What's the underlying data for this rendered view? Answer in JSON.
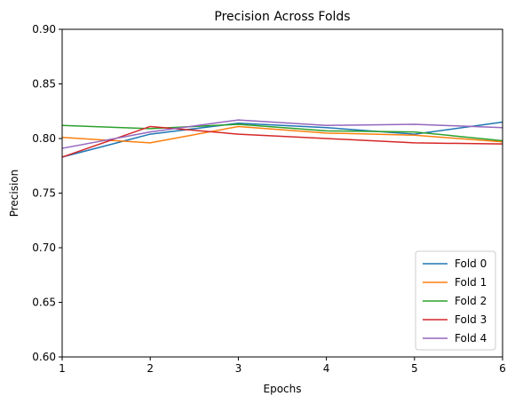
{
  "chart_data": {
    "type": "line",
    "title": "Precision Across Folds",
    "xlabel": "Epochs",
    "ylabel": "Precision",
    "xlim": [
      1,
      6
    ],
    "ylim": [
      0.6,
      0.9
    ],
    "x": [
      1,
      2,
      3,
      4,
      5,
      6
    ],
    "x_ticks": [
      "1",
      "2",
      "3",
      "4",
      "5",
      "6"
    ],
    "y_ticks": [
      "0.60",
      "0.65",
      "0.70",
      "0.75",
      "0.80",
      "0.85",
      "0.90"
    ],
    "grid": false,
    "legend_position": "bottom-right",
    "series": [
      {
        "name": "Fold 0",
        "color": "#1f77b4",
        "values": [
          0.783,
          0.804,
          0.814,
          0.81,
          0.804,
          0.815
        ]
      },
      {
        "name": "Fold 1",
        "color": "#ff7f0e",
        "values": [
          0.801,
          0.796,
          0.811,
          0.805,
          0.803,
          0.797
        ]
      },
      {
        "name": "Fold 2",
        "color": "#2ca02c",
        "values": [
          0.812,
          0.809,
          0.813,
          0.807,
          0.806,
          0.798
        ]
      },
      {
        "name": "Fold 3",
        "color": "#d62728",
        "values": [
          0.783,
          0.811,
          0.804,
          0.8,
          0.796,
          0.795
        ]
      },
      {
        "name": "Fold 4",
        "color": "#9467bd",
        "values": [
          0.791,
          0.806,
          0.817,
          0.812,
          0.813,
          0.81
        ]
      }
    ]
  }
}
